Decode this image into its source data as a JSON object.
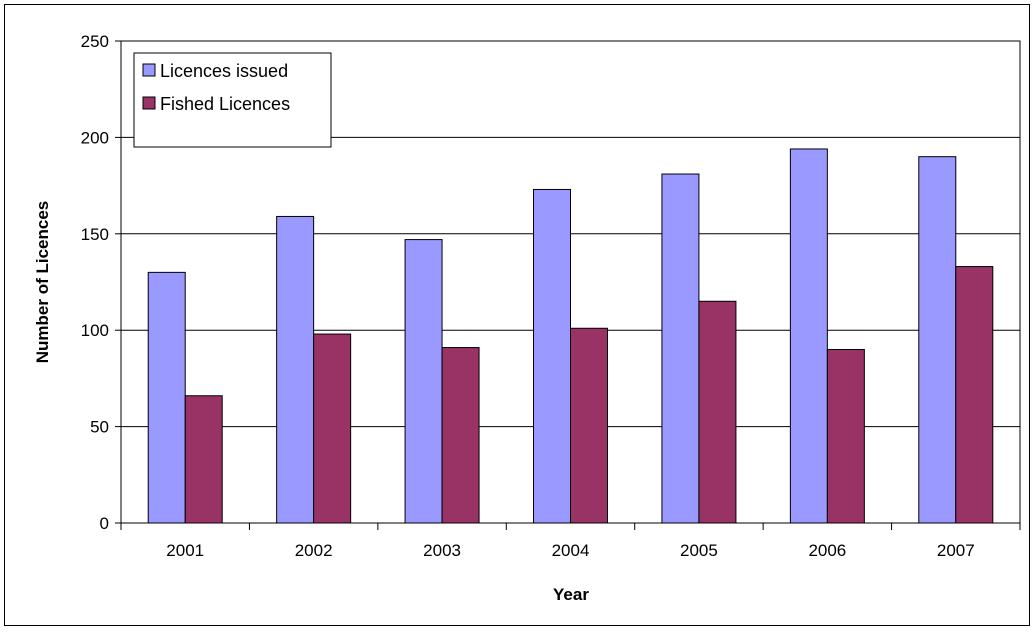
{
  "chart_data": {
    "type": "bar",
    "title": "",
    "xlabel": "Year",
    "ylabel": "Number of Licences",
    "categories": [
      "2001",
      "2002",
      "2003",
      "2004",
      "2005",
      "2006",
      "2007"
    ],
    "ylim": [
      0,
      250
    ],
    "yticks": [
      0,
      50,
      100,
      150,
      200,
      250
    ],
    "grid": true,
    "legend_position": "top-left",
    "series": [
      {
        "name": "Licences issued",
        "color": "#9999ff",
        "values": [
          130,
          159,
          147,
          173,
          181,
          194,
          190
        ]
      },
      {
        "name": "Fished Licences",
        "color": "#993366",
        "values": [
          66,
          98,
          91,
          101,
          115,
          90,
          133
        ]
      }
    ]
  }
}
